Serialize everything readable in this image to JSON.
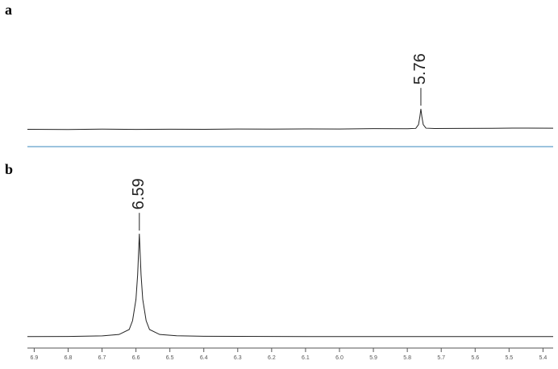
{
  "chart_data": [
    {
      "type": "line",
      "label": "a",
      "x": [
        6.92,
        6.8,
        6.7,
        6.6,
        6.5,
        6.4,
        6.3,
        6.2,
        6.1,
        6.0,
        5.9,
        5.8,
        5.775,
        5.767,
        5.763,
        5.76,
        5.757,
        5.753,
        5.745,
        5.72,
        5.65,
        5.55,
        5.45,
        5.37
      ],
      "values": [
        1.2,
        1.0,
        1.4,
        1.1,
        1.3,
        1.2,
        1.5,
        1.4,
        1.6,
        1.5,
        1.9,
        1.8,
        2.2,
        6,
        14,
        22,
        14,
        6,
        2.4,
        2.0,
        2.2,
        2.3,
        2.5,
        2.4
      ],
      "color": "#222222",
      "xlim": [
        6.92,
        5.37
      ],
      "ylim": [
        0,
        100
      ],
      "peak_labels": [
        5.76
      ]
    },
    {
      "type": "line",
      "label": "b",
      "x": [
        6.92,
        6.8,
        6.7,
        6.65,
        6.62,
        6.61,
        6.6,
        6.595,
        6.59,
        6.585,
        6.58,
        6.57,
        6.56,
        6.53,
        6.48,
        6.4,
        6.2,
        6.0,
        5.8,
        5.6,
        5.37
      ],
      "values": [
        1.0,
        1.1,
        1.4,
        2.2,
        5,
        10,
        22,
        36,
        59,
        36,
        22,
        10,
        5,
        2.2,
        1.5,
        1.2,
        1.1,
        1.0,
        1.0,
        1.0,
        1.0
      ],
      "color": "#222222",
      "xlim": [
        6.92,
        5.37
      ],
      "ylim": [
        0,
        100
      ],
      "xticks": [
        6.9,
        6.8,
        6.7,
        6.6,
        6.5,
        6.4,
        6.3,
        6.2,
        6.1,
        {
          "value": 6,
          "label": "6.0"
        },
        5.9,
        5.8,
        5.7,
        5.6,
        5.5,
        5.4
      ],
      "peak_labels": [
        6.59
      ]
    }
  ]
}
